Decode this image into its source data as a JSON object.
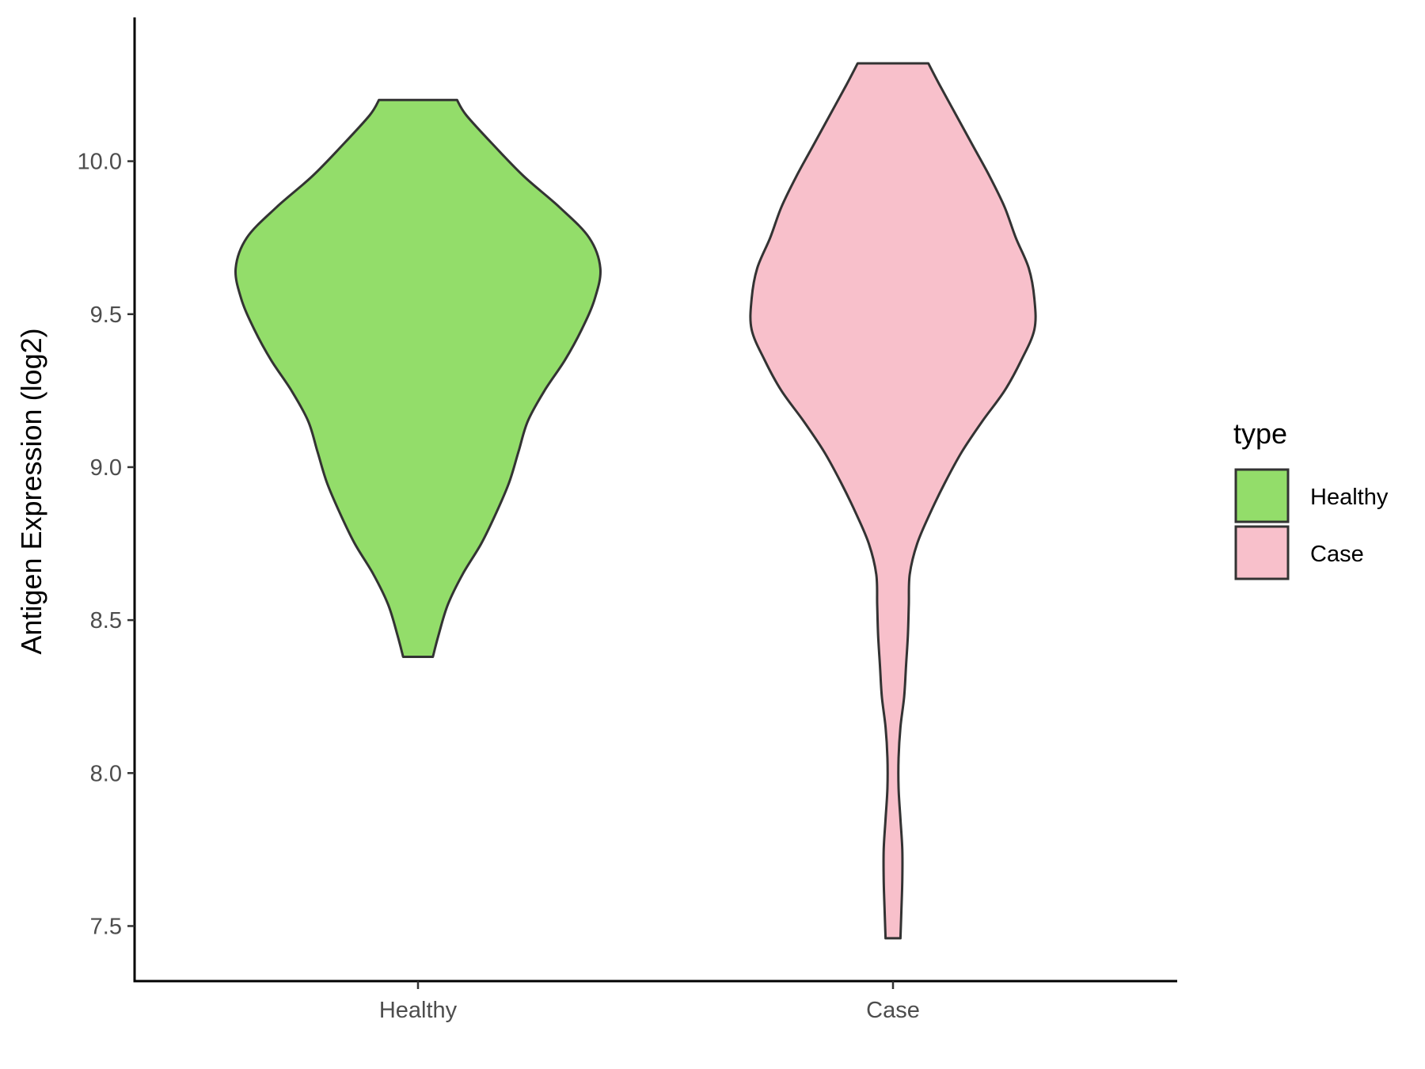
{
  "chart_data": {
    "type": "violin",
    "ylabel": "Antigen Expression (log2)",
    "xlabel": "",
    "ylim": [
      7.32,
      10.47
    ],
    "yticks": [
      7.5,
      8.0,
      8.5,
      9.0,
      9.5,
      10.0
    ],
    "ytick_labels": [
      "7.5",
      "8.0",
      "8.5",
      "9.0",
      "9.5",
      "10.0"
    ],
    "categories": [
      "Healthy",
      "Case"
    ],
    "legend": {
      "title": "type",
      "placement": "right",
      "items": [
        {
          "label": "Healthy",
          "color": "#93DD6A"
        },
        {
          "label": "Case",
          "color": "#F8C0CB"
        }
      ]
    },
    "outline_color": "#333333",
    "series": [
      {
        "name": "Healthy",
        "color": "#93DD6A",
        "min": 8.38,
        "max": 10.2,
        "profile": [
          [
            8.38,
            0.08
          ],
          [
            8.45,
            0.11
          ],
          [
            8.55,
            0.16
          ],
          [
            8.65,
            0.24
          ],
          [
            8.75,
            0.34
          ],
          [
            8.85,
            0.42
          ],
          [
            8.95,
            0.49
          ],
          [
            9.05,
            0.54
          ],
          [
            9.15,
            0.59
          ],
          [
            9.25,
            0.68
          ],
          [
            9.35,
            0.79
          ],
          [
            9.45,
            0.88
          ],
          [
            9.55,
            0.95
          ],
          [
            9.65,
            0.98
          ],
          [
            9.75,
            0.92
          ],
          [
            9.85,
            0.76
          ],
          [
            9.95,
            0.57
          ],
          [
            10.05,
            0.41
          ],
          [
            10.15,
            0.26
          ],
          [
            10.2,
            0.21
          ]
        ]
      },
      {
        "name": "Case",
        "color": "#F8C0CB",
        "min": 7.46,
        "max": 10.32,
        "profile": [
          [
            7.46,
            0.04
          ],
          [
            7.55,
            0.045
          ],
          [
            7.65,
            0.05
          ],
          [
            7.75,
            0.05
          ],
          [
            7.85,
            0.04
          ],
          [
            7.95,
            0.03
          ],
          [
            8.05,
            0.03
          ],
          [
            8.15,
            0.04
          ],
          [
            8.25,
            0.06
          ],
          [
            8.35,
            0.07
          ],
          [
            8.45,
            0.08
          ],
          [
            8.55,
            0.085
          ],
          [
            8.65,
            0.09
          ],
          [
            8.75,
            0.13
          ],
          [
            8.85,
            0.2
          ],
          [
            8.95,
            0.28
          ],
          [
            9.05,
            0.37
          ],
          [
            9.15,
            0.48
          ],
          [
            9.25,
            0.6
          ],
          [
            9.35,
            0.69
          ],
          [
            9.45,
            0.76
          ],
          [
            9.55,
            0.76
          ],
          [
            9.65,
            0.73
          ],
          [
            9.75,
            0.66
          ],
          [
            9.85,
            0.6
          ],
          [
            9.95,
            0.52
          ],
          [
            10.05,
            0.43
          ],
          [
            10.15,
            0.34
          ],
          [
            10.25,
            0.25
          ],
          [
            10.32,
            0.19
          ]
        ]
      }
    ]
  }
}
